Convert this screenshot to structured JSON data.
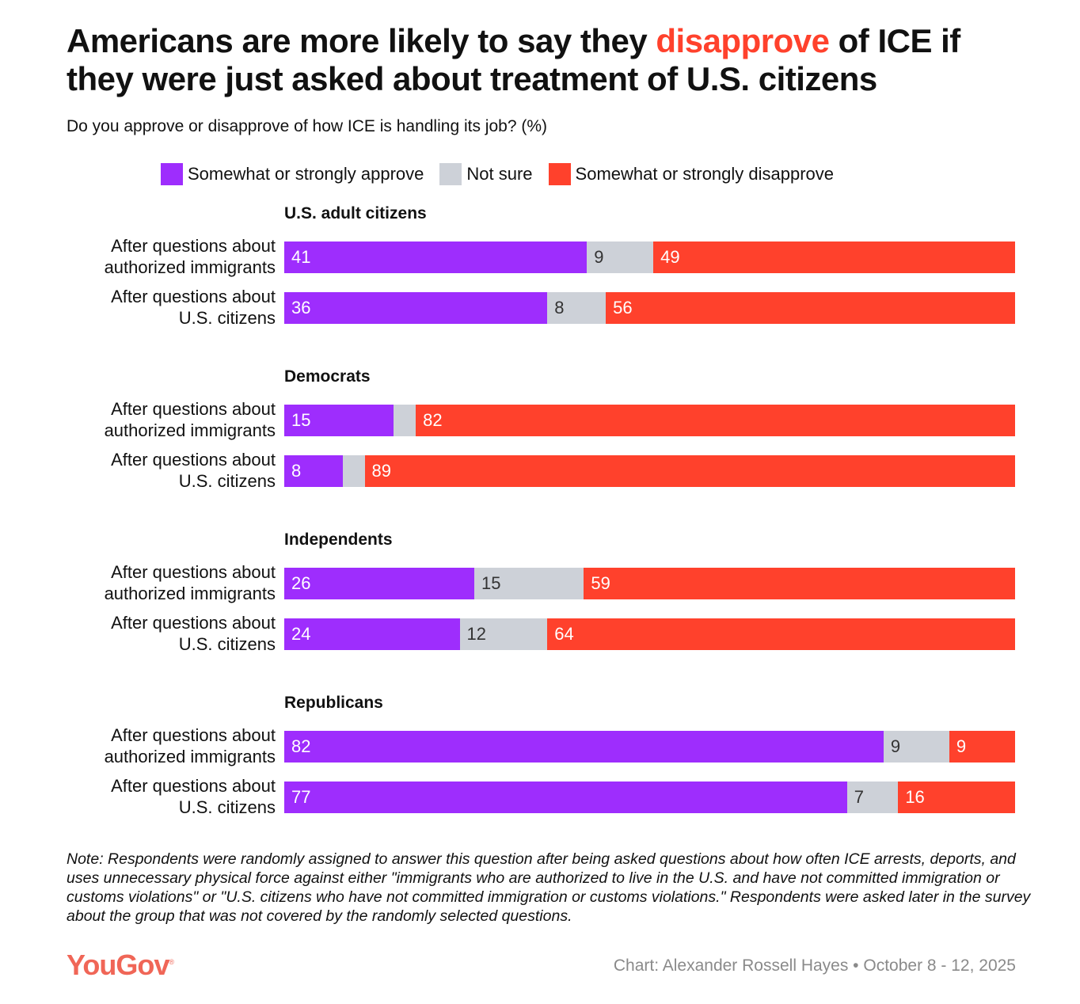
{
  "title_pre": "Americans are more likely to say they ",
  "title_highlight": "disapprove",
  "title_post": " of ICE if they were just asked about treatment of U.S. citizens",
  "subtitle": "Do you approve or disapprove of how ICE is handling its job? (%)",
  "colors": {
    "approve": "#9e2dfd",
    "not_sure": "#cdd1d8",
    "disapprove": "#ff412c",
    "highlight": "#ff412c"
  },
  "chart_data": {
    "type": "bar",
    "orientation": "horizontal-stacked",
    "legend": [
      "Somewhat or strongly approve",
      "Not sure",
      "Somewhat or strongly disapprove"
    ],
    "legend_position": "top",
    "groups": [
      {
        "name": "U.S. adult citizens",
        "rows": [
          {
            "label1": "After questions about",
            "label2": "authorized immigrants",
            "values": [
              41,
              9,
              49
            ]
          },
          {
            "label1": "After questions about",
            "label2": "U.S. citizens",
            "values": [
              36,
              8,
              56
            ]
          }
        ]
      },
      {
        "name": "Democrats",
        "rows": [
          {
            "label1": "After questions about",
            "label2": "authorized immigrants",
            "values": [
              15,
              3,
              82
            ]
          },
          {
            "label1": "After questions about",
            "label2": "U.S. citizens",
            "values": [
              8,
              3,
              89
            ]
          }
        ]
      },
      {
        "name": "Independents",
        "rows": [
          {
            "label1": "After questions about",
            "label2": "authorized immigrants",
            "values": [
              26,
              15,
              59
            ]
          },
          {
            "label1": "After questions about",
            "label2": "U.S. citizens",
            "values": [
              24,
              12,
              64
            ]
          }
        ]
      },
      {
        "name": "Republicans",
        "rows": [
          {
            "label1": "After questions about",
            "label2": "authorized immigrants",
            "values": [
              82,
              9,
              9
            ]
          },
          {
            "label1": "After questions about",
            "label2": "U.S. citizens",
            "values": [
              77,
              7,
              16
            ]
          }
        ]
      }
    ]
  },
  "note": "Note: Respondents were randomly assigned to answer this question after being asked questions about how often ICE arrests, deports, and uses unnecessary physical force against either \"immigrants who are authorized to live in the U.S. and have not committed immigration or customs violations\" or \"U.S. citizens who have not committed immigration or customs violations.\" Respondents were asked later in the survey about the group that was not covered by the randomly selected questions.",
  "logo": "YouGov",
  "credit": "Chart: Alexander Rossell Hayes • October 8 - 12, 2025"
}
